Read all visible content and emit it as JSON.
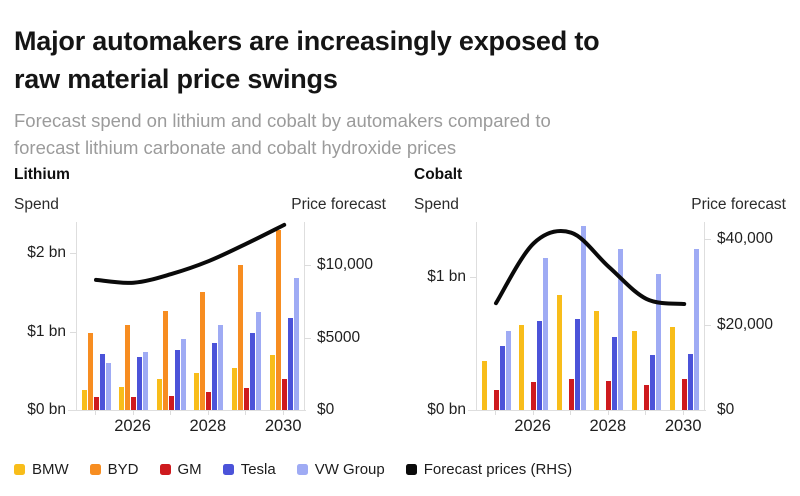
{
  "header": {
    "title": "Major automakers are increasingly exposed to\nraw material price swings",
    "subtitle": "Forecast spend on lithium and cobalt by automakers compared to\nforecast lithium carbonate and cobalt hydroxide prices"
  },
  "colors": {
    "bmw": "#F8BD1A",
    "byd": "#F78D21",
    "gm": "#CE1A1E",
    "tesla": "#4B53D9",
    "vw_group": "#9FABF4",
    "forecast_line": "#0a0a0a",
    "axis": "#dedede",
    "title_text": "#151515",
    "subtitle_text": "#9b9b9b"
  },
  "legend": [
    {
      "label": "BMW",
      "color": "#F8BD1A"
    },
    {
      "label": "BYD",
      "color": "#F78D21"
    },
    {
      "label": "GM",
      "color": "#CE1A1E"
    },
    {
      "label": "Tesla",
      "color": "#4B53D9"
    },
    {
      "label": "VW Group",
      "color": "#9FABF4"
    },
    {
      "label": "Forecast prices (RHS)",
      "color": "#0a0a0a"
    }
  ],
  "chart_data": [
    {
      "type": "bar",
      "title": "Lithium",
      "left_axis": {
        "label": "Spend",
        "unit": "$ bn",
        "max": 2.4,
        "ticks": [
          {
            "value": 0,
            "label": "$0 bn"
          },
          {
            "value": 1,
            "label": "$1 bn"
          },
          {
            "value": 2,
            "label": "$2 bn"
          }
        ]
      },
      "right_axis": {
        "label": "Price forecast",
        "unit": "$/tonne",
        "max": 13000,
        "ticks": [
          {
            "value": 0,
            "label": "$0"
          },
          {
            "value": 5000,
            "label": "$5000"
          },
          {
            "value": 10000,
            "label": "$10,000"
          }
        ]
      },
      "x_axis": {
        "years": [
          "2025",
          "2026",
          "2027",
          "2028",
          "2029",
          "2030"
        ],
        "shown_labels": [
          {
            "index": 1,
            "label": "2026"
          },
          {
            "index": 3,
            "label": "2028"
          },
          {
            "index": 5,
            "label": "2030"
          }
        ]
      },
      "series": [
        {
          "name": "BMW",
          "color": "#F8BD1A",
          "values": [
            0.26,
            0.29,
            0.39,
            0.47,
            0.53,
            0.7
          ]
        },
        {
          "name": "BYD",
          "color": "#F78D21",
          "values": [
            0.98,
            1.09,
            1.26,
            1.51,
            1.85,
            2.3
          ]
        },
        {
          "name": "GM",
          "color": "#CE1A1E",
          "values": [
            0.16,
            0.16,
            0.18,
            0.23,
            0.28,
            0.4
          ]
        },
        {
          "name": "Tesla",
          "color": "#4B53D9",
          "values": [
            0.72,
            0.68,
            0.76,
            0.85,
            0.98,
            1.18
          ]
        },
        {
          "name": "VW Group",
          "color": "#9FABF4",
          "values": [
            0.6,
            0.74,
            0.91,
            1.08,
            1.25,
            1.68
          ]
        }
      ],
      "line": {
        "name": "Forecast prices (RHS)",
        "color": "#0a0a0a",
        "values": [
          9000,
          8800,
          9400,
          10300,
          11500,
          12800
        ]
      }
    },
    {
      "type": "bar",
      "title": "Cobalt",
      "left_axis": {
        "label": "Spend",
        "unit": "$ bn",
        "max": 1.41,
        "ticks": [
          {
            "value": 0,
            "label": "$0 bn"
          },
          {
            "value": 1,
            "label": "$1 bn"
          }
        ]
      },
      "right_axis": {
        "label": "Price forecast",
        "unit": "$/tonne",
        "max": 44000,
        "ticks": [
          {
            "value": 0,
            "label": "$0"
          },
          {
            "value": 20000,
            "label": "$20,000"
          },
          {
            "value": 40000,
            "label": "$40,000"
          }
        ]
      },
      "x_axis": {
        "years": [
          "2025",
          "2026",
          "2027",
          "2028",
          "2029",
          "2030"
        ],
        "shown_labels": [
          {
            "index": 1,
            "label": "2026"
          },
          {
            "index": 3,
            "label": "2028"
          },
          {
            "index": 5,
            "label": "2030"
          }
        ]
      },
      "series": [
        {
          "name": "BMW",
          "color": "#F8BD1A",
          "values": [
            0.37,
            0.64,
            0.86,
            0.74,
            0.59,
            0.62
          ]
        },
        {
          "name": "BYD",
          "color": "#F78D21",
          "values": [
            0,
            0,
            0,
            0,
            0,
            0
          ]
        },
        {
          "name": "GM",
          "color": "#CE1A1E",
          "values": [
            0.15,
            0.21,
            0.23,
            0.22,
            0.19,
            0.23
          ]
        },
        {
          "name": "Tesla",
          "color": "#4B53D9",
          "values": [
            0.48,
            0.67,
            0.68,
            0.55,
            0.41,
            0.42
          ]
        },
        {
          "name": "VW Group",
          "color": "#9FABF4",
          "values": [
            0.59,
            1.14,
            1.38,
            1.21,
            1.02,
            1.21
          ]
        }
      ],
      "line": {
        "name": "Forecast prices (RHS)",
        "color": "#0a0a0a",
        "values": [
          25000,
          39000,
          41500,
          33500,
          26000,
          24800
        ]
      }
    }
  ]
}
